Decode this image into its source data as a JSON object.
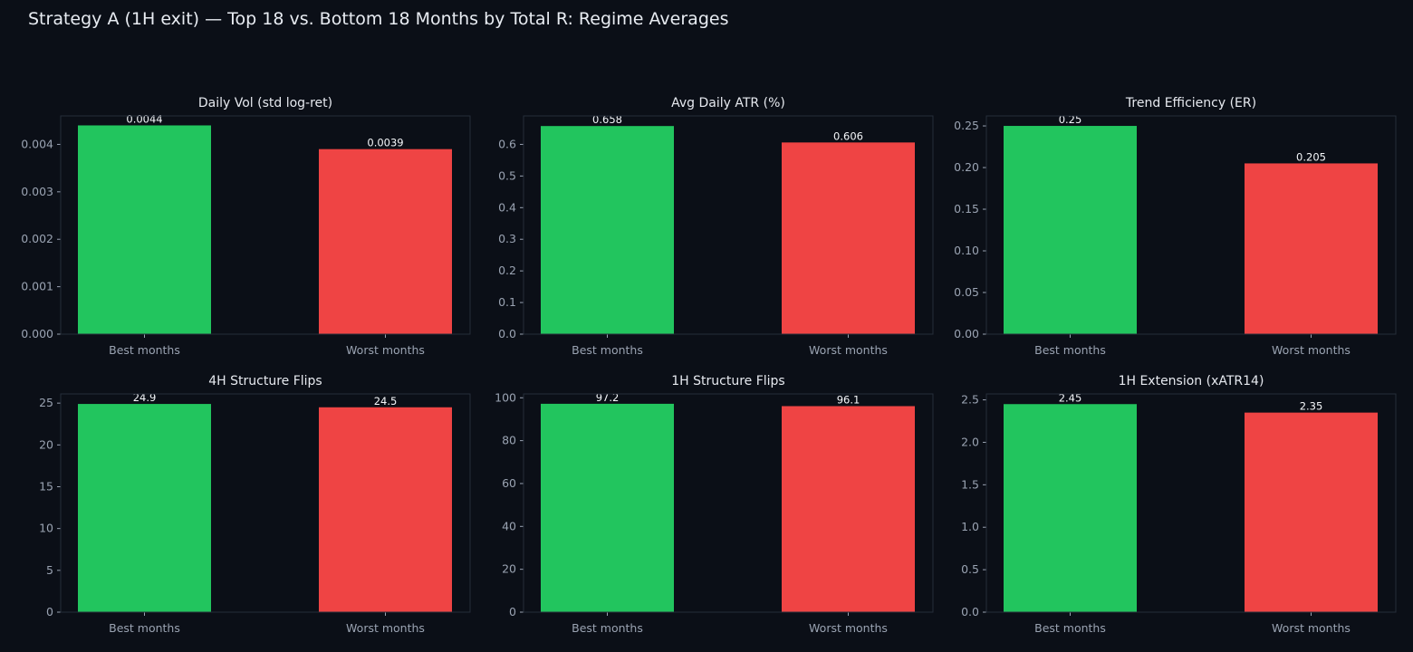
{
  "title": "Strategy A (1H exit) — Top 18 vs. Bottom 18 Months by Total R: Regime Averages",
  "colors": {
    "background": "#0b0f17",
    "best": "#22c55e",
    "worst": "#ef4444",
    "text": "#e6e9ef",
    "tick": "#9aa3b2",
    "frame": "#262d3a"
  },
  "chart_data": [
    {
      "type": "bar",
      "title": "Daily Vol (std log-ret)",
      "categories": [
        "Best months",
        "Worst months"
      ],
      "values": [
        0.0044,
        0.0039
      ],
      "value_labels": [
        "0.0044",
        "0.0039"
      ],
      "ylim": [
        0,
        0.0046
      ],
      "yticks": [
        0,
        0.001,
        0.002,
        0.003,
        0.004
      ],
      "ytick_labels": [
        "0.000",
        "0.001",
        "0.002",
        "0.003",
        "0.004"
      ],
      "grid": false
    },
    {
      "type": "bar",
      "title": "Avg Daily ATR (%)",
      "categories": [
        "Best months",
        "Worst months"
      ],
      "values": [
        0.658,
        0.606
      ],
      "value_labels": [
        "0.658",
        "0.606"
      ],
      "ylim": [
        0,
        0.69
      ],
      "yticks": [
        0,
        0.1,
        0.2,
        0.3,
        0.4,
        0.5,
        0.6
      ],
      "ytick_labels": [
        "0.0",
        "0.1",
        "0.2",
        "0.3",
        "0.4",
        "0.5",
        "0.6"
      ],
      "grid": false
    },
    {
      "type": "bar",
      "title": "Trend Efficiency (ER)",
      "categories": [
        "Best months",
        "Worst months"
      ],
      "values": [
        0.25,
        0.205
      ],
      "value_labels": [
        "0.25",
        "0.205"
      ],
      "ylim": [
        0,
        0.262
      ],
      "yticks": [
        0,
        0.05,
        0.1,
        0.15,
        0.2,
        0.25
      ],
      "ytick_labels": [
        "0.00",
        "0.05",
        "0.10",
        "0.15",
        "0.20",
        "0.25"
      ],
      "grid": false
    },
    {
      "type": "bar",
      "title": "4H Structure Flips",
      "categories": [
        "Best months",
        "Worst months"
      ],
      "values": [
        24.9,
        24.5
      ],
      "value_labels": [
        "24.9",
        "24.5"
      ],
      "ylim": [
        0,
        26.1
      ],
      "yticks": [
        0,
        5,
        10,
        15,
        20,
        25
      ],
      "ytick_labels": [
        "0",
        "5",
        "10",
        "15",
        "20",
        "25"
      ],
      "grid": false
    },
    {
      "type": "bar",
      "title": "1H Structure Flips",
      "categories": [
        "Best months",
        "Worst months"
      ],
      "values": [
        97.2,
        96.1
      ],
      "value_labels": [
        "97.2",
        "96.1"
      ],
      "ylim": [
        0,
        101.8
      ],
      "yticks": [
        0,
        20,
        40,
        60,
        80,
        100
      ],
      "ytick_labels": [
        "0",
        "20",
        "40",
        "60",
        "80",
        "100"
      ],
      "grid": false
    },
    {
      "type": "bar",
      "title": "1H Extension (xATR14)",
      "categories": [
        "Best months",
        "Worst months"
      ],
      "values": [
        2.45,
        2.35
      ],
      "value_labels": [
        "2.45",
        "2.35"
      ],
      "ylim": [
        0,
        2.57
      ],
      "yticks": [
        0,
        0.5,
        1.0,
        1.5,
        2.0,
        2.5
      ],
      "ytick_labels": [
        "0.0",
        "0.5",
        "1.0",
        "1.5",
        "2.0",
        "2.5"
      ],
      "grid": false
    }
  ]
}
